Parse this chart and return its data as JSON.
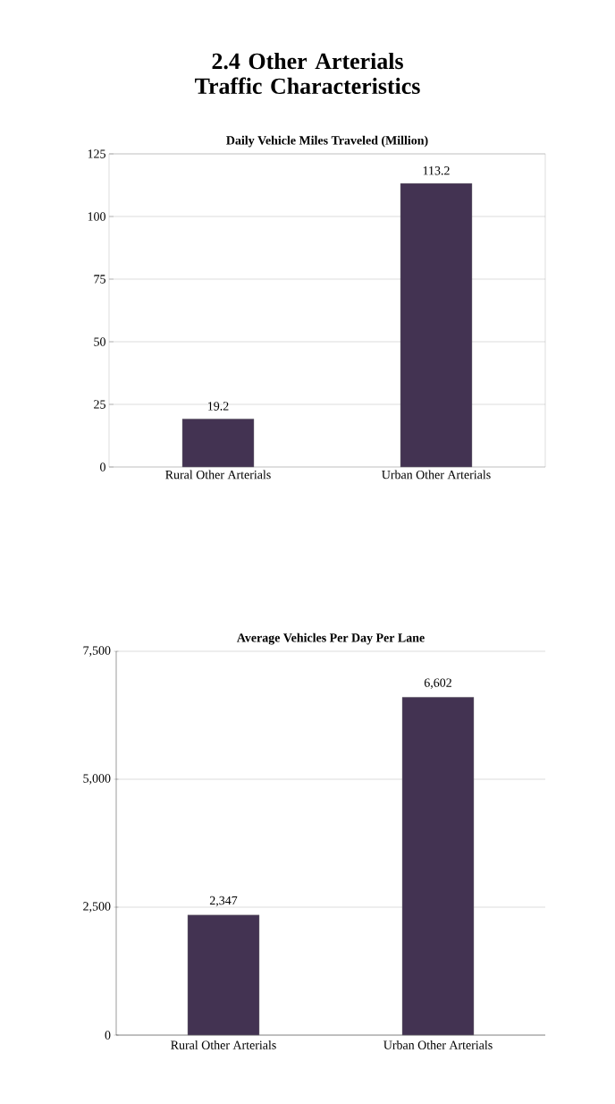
{
  "chart_data": [
    {
      "type": "bar",
      "title": "2.4 Other Arterials Traffic Characteristics",
      "subtitle": "Daily Vehicle Miles Traveled (Million)",
      "categories": [
        "Rural Other Arterials",
        "Urban Other Arterials"
      ],
      "values": [
        19.2,
        113.2
      ],
      "color": "#433352",
      "ylim": [
        0,
        125
      ],
      "yticks": [
        0,
        25,
        50,
        75,
        100,
        125
      ],
      "grid": "y",
      "data_labels": true
    },
    {
      "type": "bar",
      "title": "Average Vehicles Per Day Per Lane",
      "categories": [
        "Rural Other Arterials",
        "Urban Other Arterials"
      ],
      "values": [
        2347,
        6602
      ],
      "value_labels": [
        "2,347",
        "6,602"
      ],
      "color": "#433352",
      "ylim": [
        0,
        7500
      ],
      "yticks": [
        0,
        {
          "value": 2500,
          "label": "2,500"
        },
        {
          "value": 5000,
          "label": "5,000"
        },
        {
          "value": 7500,
          "label": "7,500"
        }
      ],
      "grid": "y"
    }
  ]
}
